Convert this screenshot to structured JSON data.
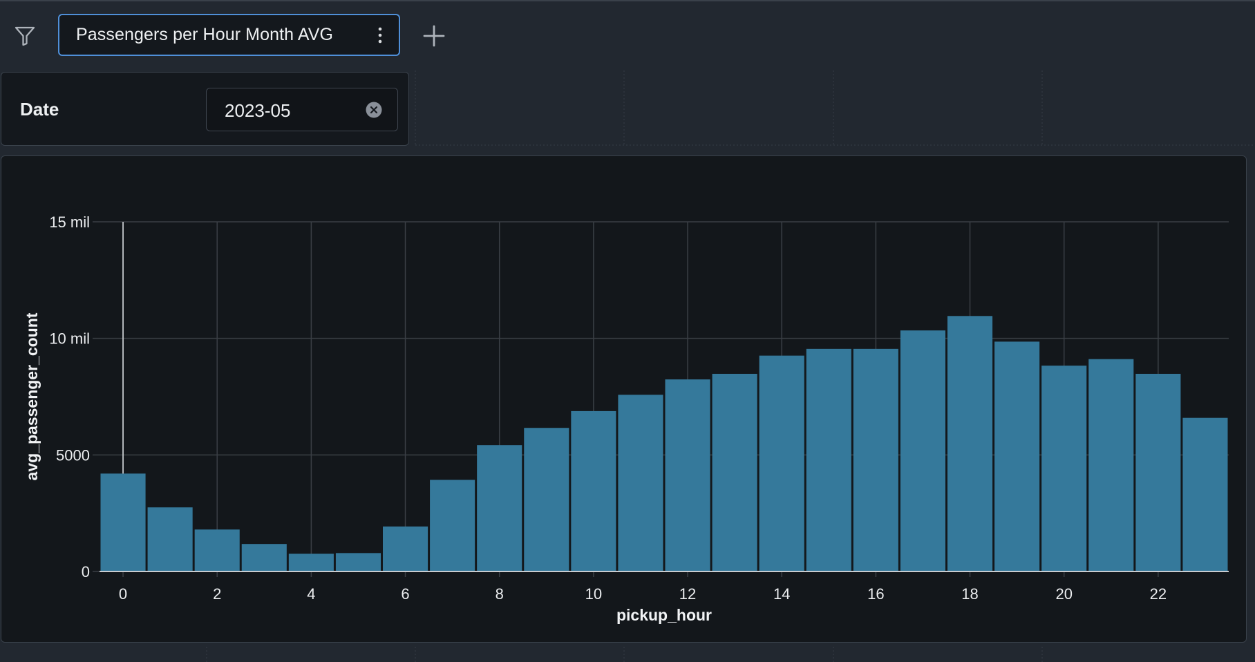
{
  "toolbar": {
    "filter_icon": "filter-icon",
    "add_icon": "plus-icon"
  },
  "tabs": [
    {
      "label": "Passengers per Hour Month AVG",
      "menu_icon": "kebab-icon",
      "active": true
    }
  ],
  "filters": [
    {
      "label": "Date",
      "value": "2023-05",
      "clear_icon": "clear-icon"
    }
  ],
  "colors": {
    "accent": "#4f8fd8",
    "bar": "#35799b",
    "background": "#222830",
    "card": "#14181d"
  },
  "chart_data": {
    "type": "bar",
    "xlabel": "pickup_hour",
    "ylabel": "avg_passenger_count",
    "categories": [
      0,
      1,
      2,
      3,
      4,
      5,
      6,
      7,
      8,
      9,
      10,
      11,
      12,
      13,
      14,
      15,
      16,
      17,
      18,
      19,
      20,
      21,
      22,
      23
    ],
    "values": [
      4200,
      2750,
      1800,
      1180,
      760,
      790,
      1930,
      3930,
      5420,
      6160,
      6880,
      7580,
      8240,
      8480,
      9260,
      9550,
      9550,
      10340,
      10960,
      9860,
      8830,
      9110,
      8480,
      6590
    ],
    "ylim": [
      0,
      15000
    ],
    "yticks": [
      0,
      5000,
      10000,
      15000
    ],
    "ytick_labels": [
      "0",
      "5000",
      "10 mil",
      "15 mil"
    ],
    "xticks": [
      0,
      2,
      4,
      6,
      8,
      10,
      12,
      14,
      16,
      18,
      20,
      22
    ],
    "xtick_labels": [
      "0",
      "2",
      "4",
      "6",
      "8",
      "10",
      "12",
      "14",
      "16",
      "18",
      "20",
      "22"
    ],
    "grid": true
  }
}
